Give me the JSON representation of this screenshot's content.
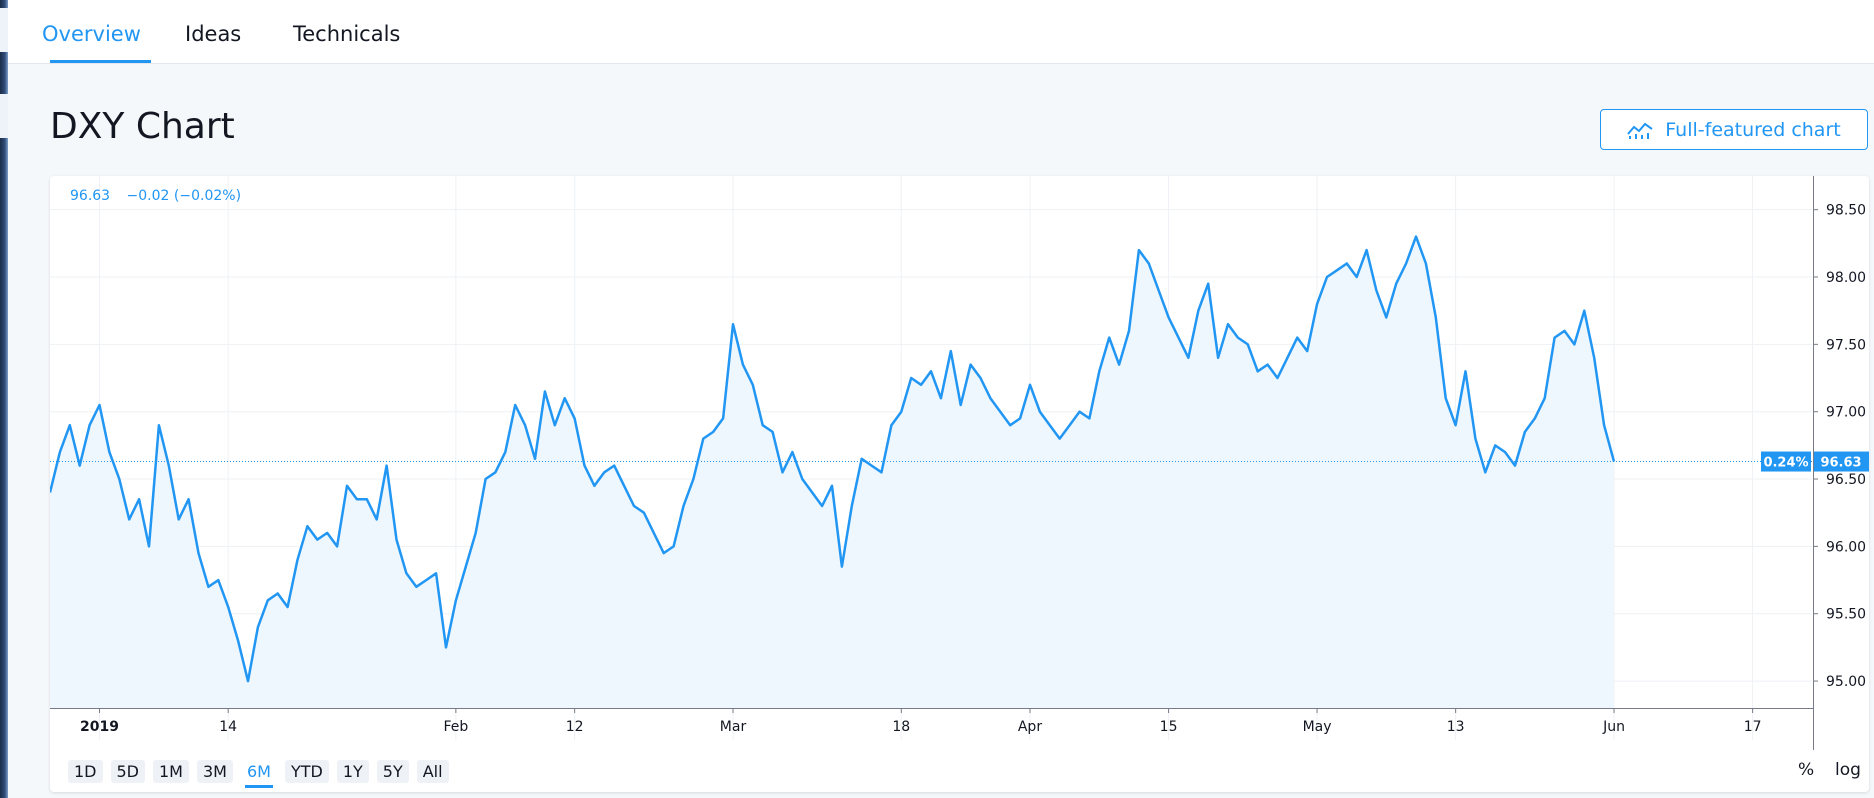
{
  "tabs": [
    {
      "label": "Overview",
      "active": true
    },
    {
      "label": "Ideas",
      "active": false
    },
    {
      "label": "Technicals",
      "active": false
    }
  ],
  "page_title": "DXY Chart",
  "full_chart_button": {
    "label": "Full-featured chart",
    "icon": "chart-line-icon"
  },
  "quote": {
    "price": "96.63",
    "change": "−0.02 (−0.02%)"
  },
  "range_buttons": [
    "1D",
    "5D",
    "1M",
    "3M",
    "6M",
    "YTD",
    "1Y",
    "5Y",
    "All"
  ],
  "active_range": "6M",
  "chart_options": {
    "percent": "%",
    "log": "log"
  },
  "colors": {
    "accent": "#2196f3",
    "area_fill": "#eef6fe",
    "grid": "#eef1f5"
  },
  "chart_data": {
    "type": "area",
    "title": "",
    "xlabel": "",
    "ylabel": "",
    "x_tick_labels": [
      "2019",
      "14",
      "Feb",
      "12",
      "Mar",
      "18",
      "Apr",
      "15",
      "May",
      "13",
      "Jun",
      "17"
    ],
    "y_ticks": [
      "98.50",
      "98.00",
      "97.50",
      "97.00",
      "96.50",
      "96.00",
      "95.50",
      "95.00"
    ],
    "ylim": [
      94.8,
      98.75
    ],
    "x_range_days": [
      -5,
      173
    ],
    "last_price": "96.63",
    "last_price_value": 96.63,
    "last_change_label": "0.24%",
    "grid": true,
    "series": [
      {
        "points": [
          [
            -5,
            96.4
          ],
          [
            -4,
            96.7
          ],
          [
            -3,
            96.9
          ],
          [
            -2,
            96.6
          ],
          [
            -1,
            96.9
          ],
          [
            0,
            97.05
          ],
          [
            1,
            96.7
          ],
          [
            2,
            96.5
          ],
          [
            3,
            96.2
          ],
          [
            4,
            96.35
          ],
          [
            5,
            96.0
          ],
          [
            6,
            96.9
          ],
          [
            7,
            96.6
          ],
          [
            8,
            96.2
          ],
          [
            9,
            96.35
          ],
          [
            10,
            95.95
          ],
          [
            11,
            95.7
          ],
          [
            12,
            95.75
          ],
          [
            13,
            95.55
          ],
          [
            14,
            95.3
          ],
          [
            15,
            95.0
          ],
          [
            16,
            95.4
          ],
          [
            17,
            95.6
          ],
          [
            18,
            95.65
          ],
          [
            19,
            95.55
          ],
          [
            20,
            95.9
          ],
          [
            21,
            96.15
          ],
          [
            22,
            96.05
          ],
          [
            23,
            96.1
          ],
          [
            24,
            96.0
          ],
          [
            25,
            96.45
          ],
          [
            26,
            96.35
          ],
          [
            27,
            96.35
          ],
          [
            28,
            96.2
          ],
          [
            29,
            96.6
          ],
          [
            30,
            96.05
          ],
          [
            31,
            95.8
          ],
          [
            32,
            95.7
          ],
          [
            33,
            95.75
          ],
          [
            34,
            95.8
          ],
          [
            35,
            95.25
          ],
          [
            36,
            95.6
          ],
          [
            37,
            95.85
          ],
          [
            38,
            96.1
          ],
          [
            39,
            96.5
          ],
          [
            40,
            96.55
          ],
          [
            41,
            96.7
          ],
          [
            42,
            97.05
          ],
          [
            43,
            96.9
          ],
          [
            44,
            96.65
          ],
          [
            45,
            97.15
          ],
          [
            46,
            96.9
          ],
          [
            47,
            97.1
          ],
          [
            48,
            96.95
          ],
          [
            49,
            96.6
          ],
          [
            50,
            96.45
          ],
          [
            51,
            96.55
          ],
          [
            52,
            96.6
          ],
          [
            53,
            96.45
          ],
          [
            54,
            96.3
          ],
          [
            55,
            96.25
          ],
          [
            56,
            96.1
          ],
          [
            57,
            95.95
          ],
          [
            58,
            96.0
          ],
          [
            59,
            96.3
          ],
          [
            60,
            96.5
          ],
          [
            61,
            96.8
          ],
          [
            62,
            96.85
          ],
          [
            63,
            96.95
          ],
          [
            64,
            97.65
          ],
          [
            65,
            97.35
          ],
          [
            66,
            97.2
          ],
          [
            67,
            96.9
          ],
          [
            68,
            96.85
          ],
          [
            69,
            96.55
          ],
          [
            70,
            96.7
          ],
          [
            71,
            96.5
          ],
          [
            72,
            96.4
          ],
          [
            73,
            96.3
          ],
          [
            74,
            96.45
          ],
          [
            75,
            95.85
          ],
          [
            76,
            96.3
          ],
          [
            77,
            96.65
          ],
          [
            78,
            96.6
          ],
          [
            79,
            96.55
          ],
          [
            80,
            96.9
          ],
          [
            81,
            97.0
          ],
          [
            82,
            97.25
          ],
          [
            83,
            97.2
          ],
          [
            84,
            97.3
          ],
          [
            85,
            97.1
          ],
          [
            86,
            97.45
          ],
          [
            87,
            97.05
          ],
          [
            88,
            97.35
          ],
          [
            89,
            97.25
          ],
          [
            90,
            97.1
          ],
          [
            91,
            97.0
          ],
          [
            92,
            96.9
          ],
          [
            93,
            96.95
          ],
          [
            94,
            97.2
          ],
          [
            95,
            97.0
          ],
          [
            96,
            96.9
          ],
          [
            97,
            96.8
          ],
          [
            98,
            96.9
          ],
          [
            99,
            97.0
          ],
          [
            100,
            96.95
          ],
          [
            101,
            97.3
          ],
          [
            102,
            97.55
          ],
          [
            103,
            97.35
          ],
          [
            104,
            97.6
          ],
          [
            105,
            98.2
          ],
          [
            106,
            98.1
          ],
          [
            107,
            97.9
          ],
          [
            108,
            97.7
          ],
          [
            109,
            97.55
          ],
          [
            110,
            97.4
          ],
          [
            111,
            97.75
          ],
          [
            112,
            97.95
          ],
          [
            113,
            97.4
          ],
          [
            114,
            97.65
          ],
          [
            115,
            97.55
          ],
          [
            116,
            97.5
          ],
          [
            117,
            97.3
          ],
          [
            118,
            97.35
          ],
          [
            119,
            97.25
          ],
          [
            120,
            97.4
          ],
          [
            121,
            97.55
          ],
          [
            122,
            97.45
          ],
          [
            123,
            97.8
          ],
          [
            124,
            98.0
          ],
          [
            125,
            98.05
          ],
          [
            126,
            98.1
          ],
          [
            127,
            98.0
          ],
          [
            128,
            98.2
          ],
          [
            129,
            97.9
          ],
          [
            130,
            97.7
          ],
          [
            131,
            97.95
          ],
          [
            132,
            98.1
          ],
          [
            133,
            98.3
          ],
          [
            134,
            98.1
          ],
          [
            135,
            97.7
          ],
          [
            136,
            97.1
          ],
          [
            137,
            96.9
          ],
          [
            138,
            97.3
          ],
          [
            139,
            96.8
          ],
          [
            140,
            96.55
          ],
          [
            141,
            96.75
          ],
          [
            142,
            96.7
          ],
          [
            143,
            96.6
          ],
          [
            144,
            96.85
          ],
          [
            145,
            96.95
          ],
          [
            146,
            97.1
          ],
          [
            147,
            97.55
          ],
          [
            148,
            97.6
          ],
          [
            149,
            97.5
          ],
          [
            150,
            97.75
          ],
          [
            151,
            97.4
          ],
          [
            152,
            96.9
          ],
          [
            153,
            96.63
          ]
        ]
      }
    ]
  }
}
